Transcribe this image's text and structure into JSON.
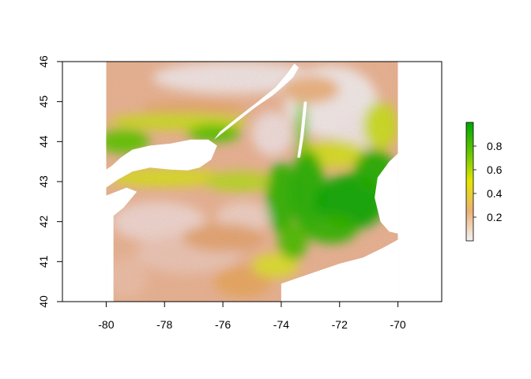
{
  "chart_data": {
    "type": "heatmap",
    "title": "",
    "xlabel": "",
    "ylabel": "",
    "xlim": [
      -81.5,
      -68.5
    ],
    "ylim": [
      40,
      46
    ],
    "x_ticks": [
      -80,
      -78,
      -76,
      -74,
      -72,
      -70
    ],
    "x_tick_labels": [
      "-80",
      "-78",
      "-76",
      "-74",
      "-72",
      "-70"
    ],
    "y_ticks": [
      40,
      41,
      42,
      43,
      44,
      45,
      46
    ],
    "y_tick_labels": [
      "40",
      "41",
      "42",
      "43",
      "44",
      "45",
      "46"
    ],
    "raster_extent": {
      "xmin": -80,
      "xmax": -70,
      "ymin": 40,
      "ymax": 46
    },
    "legend": {
      "placement": "right",
      "range": [
        0,
        1
      ],
      "ticks": [
        0.2,
        0.4,
        0.6,
        0.8
      ],
      "tick_labels": [
        "0.2",
        "0.4",
        "0.6",
        "0.8"
      ],
      "colors": [
        "#f2f2f2",
        "#ecb176",
        "#e6e600",
        "#63c600",
        "#00a600"
      ]
    },
    "water_bodies": [
      {
        "feature": "lake-ontario",
        "polygon": [
          [
            -80,
            42.85
          ],
          [
            -79.6,
            43.05
          ],
          [
            -79.1,
            43.25
          ],
          [
            -78.5,
            43.35
          ],
          [
            -77.8,
            43.3
          ],
          [
            -77.2,
            43.28
          ],
          [
            -76.8,
            43.35
          ],
          [
            -76.4,
            43.55
          ],
          [
            -76.2,
            43.9
          ],
          [
            -76.5,
            44.05
          ],
          [
            -77.1,
            44.05
          ],
          [
            -77.8,
            43.95
          ],
          [
            -78.5,
            43.9
          ],
          [
            -79.1,
            43.8
          ],
          [
            -79.5,
            43.6
          ],
          [
            -79.8,
            43.4
          ],
          [
            -80,
            43.3
          ]
        ]
      },
      {
        "feature": "st-lawrence-river",
        "polygon": [
          [
            -76.3,
            44.05
          ],
          [
            -75.6,
            44.45
          ],
          [
            -74.9,
            44.85
          ],
          [
            -74.3,
            45.15
          ],
          [
            -73.9,
            45.4
          ],
          [
            -73.6,
            45.6
          ],
          [
            -73.4,
            45.85
          ],
          [
            -73.55,
            45.95
          ],
          [
            -73.8,
            45.7
          ],
          [
            -74.2,
            45.35
          ],
          [
            -74.8,
            45.0
          ],
          [
            -75.5,
            44.6
          ],
          [
            -76.1,
            44.25
          ]
        ]
      },
      {
        "feature": "lake-champlain",
        "polygon": [
          [
            -73.45,
            43.6
          ],
          [
            -73.35,
            44.1
          ],
          [
            -73.28,
            44.6
          ],
          [
            -73.22,
            45.0
          ],
          [
            -73.12,
            45.0
          ],
          [
            -73.17,
            44.6
          ],
          [
            -73.24,
            44.1
          ],
          [
            -73.35,
            43.6
          ]
        ]
      },
      {
        "feature": "atlantic-ocean",
        "polygon": [
          [
            -74.0,
            40.0
          ],
          [
            -74.0,
            40.45
          ],
          [
            -73.6,
            40.55
          ],
          [
            -72.8,
            40.75
          ],
          [
            -72.0,
            40.95
          ],
          [
            -71.2,
            41.1
          ],
          [
            -70.5,
            41.35
          ],
          [
            -70.0,
            41.55
          ],
          [
            -70.0,
            40.0
          ]
        ]
      },
      {
        "feature": "gulf-of-maine",
        "polygon": [
          [
            -70.0,
            41.7
          ],
          [
            -70.3,
            41.75
          ],
          [
            -70.6,
            42.0
          ],
          [
            -70.8,
            42.6
          ],
          [
            -70.7,
            43.1
          ],
          [
            -70.3,
            43.5
          ],
          [
            -70.0,
            43.7
          ]
        ]
      },
      {
        "feature": "lake-erie",
        "polygon": [
          [
            -80,
            42.0
          ],
          [
            -79.4,
            42.35
          ],
          [
            -78.95,
            42.75
          ],
          [
            -79.3,
            42.85
          ],
          [
            -80,
            42.65
          ]
        ]
      }
    ],
    "no_data_regions": [
      {
        "feature": "western-edge-nodata",
        "polygon": [
          [
            -80,
            42.2
          ],
          [
            -79.75,
            42.15
          ],
          [
            -79.75,
            40.0
          ],
          [
            -80,
            40.0
          ]
        ]
      }
    ]
  }
}
